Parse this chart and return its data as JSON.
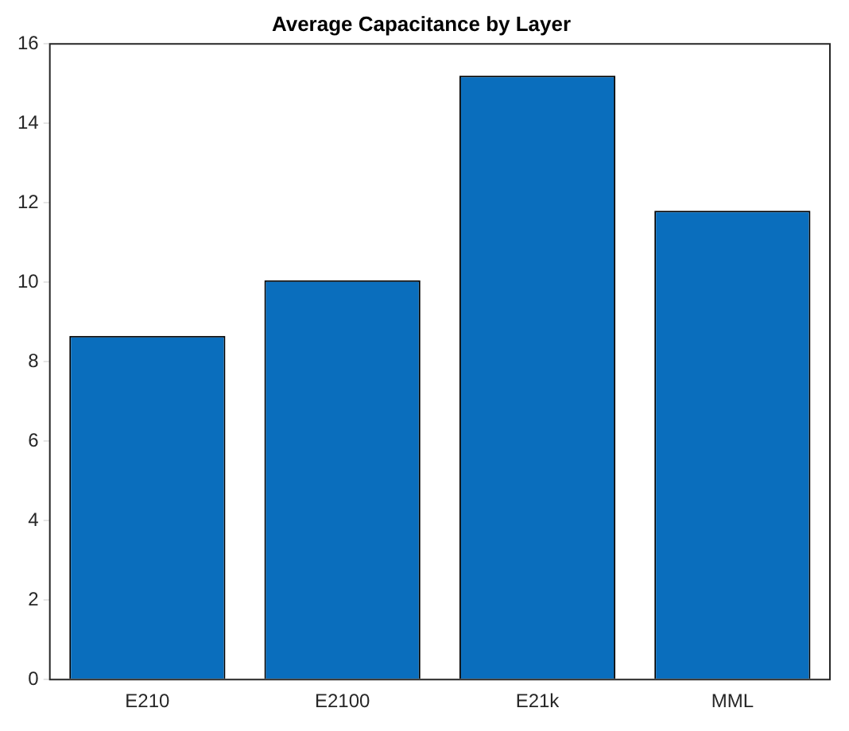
{
  "chart_data": {
    "type": "bar",
    "title": "Average Capacitance by Layer",
    "categories": [
      "E210",
      "E2100",
      "E21k",
      "MML"
    ],
    "values": [
      8.65,
      10.05,
      15.2,
      11.8
    ],
    "color": "#0a6ebd",
    "ylim": [
      0,
      16
    ],
    "yticks": [
      0,
      2,
      4,
      6,
      8,
      10,
      12,
      14,
      16
    ],
    "grid": false,
    "legend": false
  }
}
